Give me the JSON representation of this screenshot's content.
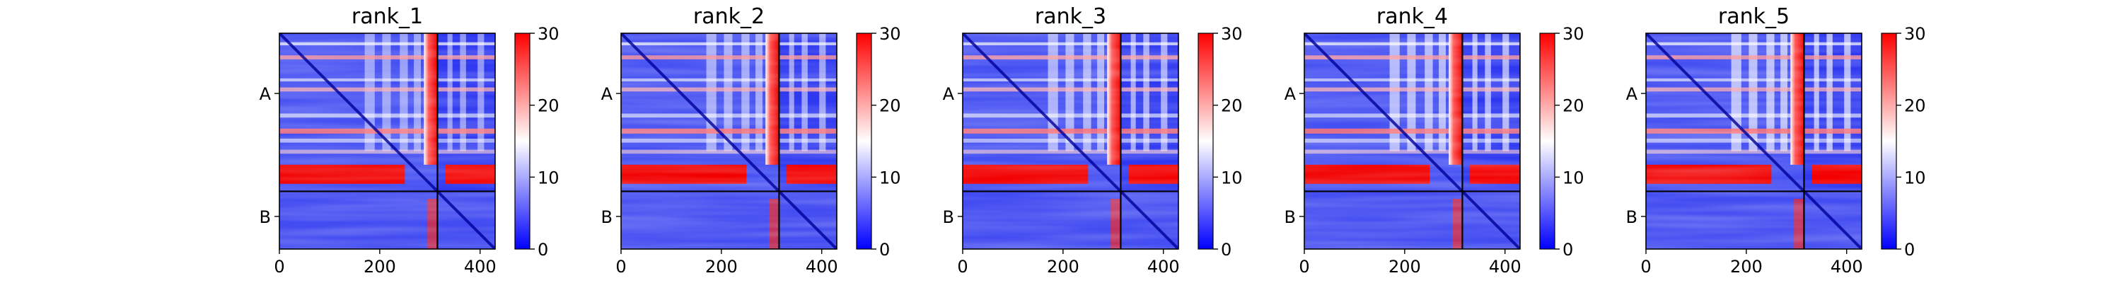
{
  "figure": {
    "panel_count": 5
  },
  "chart_data": [
    {
      "type": "heatmap",
      "title": "rank_1",
      "x_ticks": [
        "0",
        "200",
        "400"
      ],
      "x_tick_values": [
        0,
        200,
        400
      ],
      "y_tick_labels": [
        "A",
        "B"
      ],
      "y_tick_values": [
        120,
        365
      ],
      "chain_boundary": 315,
      "matrix_size": 430,
      "colorbar": {
        "min": 0,
        "max": 30,
        "ticks": [
          "0",
          "10",
          "20",
          "30"
        ],
        "tick_values": [
          0,
          10,
          20,
          30
        ],
        "colors": [
          "#0000ff",
          "#ffffff",
          "#ff0000"
        ]
      }
    },
    {
      "type": "heatmap",
      "title": "rank_2",
      "x_ticks": [
        "0",
        "200",
        "400"
      ],
      "x_tick_values": [
        0,
        200,
        400
      ],
      "y_tick_labels": [
        "A",
        "B"
      ],
      "y_tick_values": [
        120,
        365
      ],
      "chain_boundary": 315,
      "matrix_size": 430,
      "colorbar": {
        "min": 0,
        "max": 30,
        "ticks": [
          "0",
          "10",
          "20",
          "30"
        ],
        "tick_values": [
          0,
          10,
          20,
          30
        ],
        "colors": [
          "#0000ff",
          "#ffffff",
          "#ff0000"
        ]
      }
    },
    {
      "type": "heatmap",
      "title": "rank_3",
      "x_ticks": [
        "0",
        "200",
        "400"
      ],
      "x_tick_values": [
        0,
        200,
        400
      ],
      "y_tick_labels": [
        "A",
        "B"
      ],
      "y_tick_values": [
        120,
        365
      ],
      "chain_boundary": 315,
      "matrix_size": 430,
      "colorbar": {
        "min": 0,
        "max": 30,
        "ticks": [
          "0",
          "10",
          "20",
          "30"
        ],
        "tick_values": [
          0,
          10,
          20,
          30
        ],
        "colors": [
          "#0000ff",
          "#ffffff",
          "#ff0000"
        ]
      }
    },
    {
      "type": "heatmap",
      "title": "rank_4",
      "x_ticks": [
        "0",
        "200",
        "400"
      ],
      "x_tick_values": [
        0,
        200,
        400
      ],
      "y_tick_labels": [
        "A",
        "B"
      ],
      "y_tick_values": [
        120,
        365
      ],
      "chain_boundary": 315,
      "matrix_size": 430,
      "colorbar": {
        "min": 0,
        "max": 30,
        "ticks": [
          "0",
          "10",
          "20",
          "30"
        ],
        "tick_values": [
          0,
          10,
          20,
          30
        ],
        "colors": [
          "#0000ff",
          "#ffffff",
          "#ff0000"
        ]
      }
    },
    {
      "type": "heatmap",
      "title": "rank_5",
      "x_ticks": [
        "0",
        "200",
        "400"
      ],
      "x_tick_values": [
        0,
        200,
        400
      ],
      "y_tick_labels": [
        "A",
        "B"
      ],
      "y_tick_values": [
        120,
        365
      ],
      "chain_boundary": 315,
      "matrix_size": 430,
      "colorbar": {
        "min": 0,
        "max": 30,
        "ticks": [
          "0",
          "10",
          "20",
          "30"
        ],
        "tick_values": [
          0,
          10,
          20,
          30
        ],
        "colors": [
          "#0000ff",
          "#ffffff",
          "#ff0000"
        ]
      }
    }
  ]
}
